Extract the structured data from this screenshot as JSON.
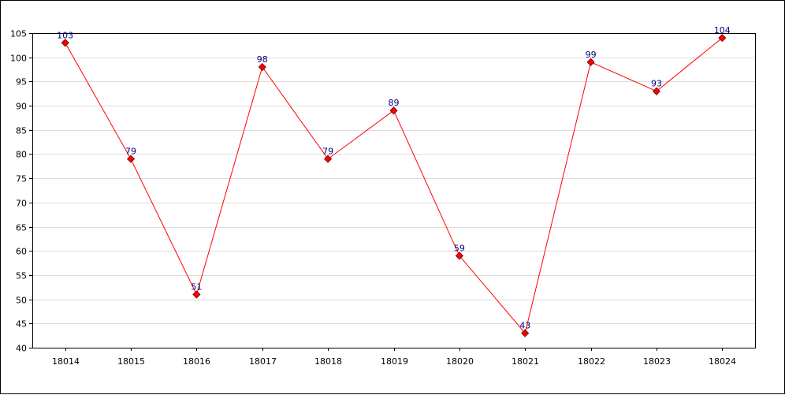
{
  "chart_data": {
    "type": "line",
    "title": "",
    "xlabel": "",
    "ylabel": "",
    "categories": [
      "18014",
      "18015",
      "18016",
      "18017",
      "18018",
      "18019",
      "18020",
      "18021",
      "18022",
      "18023",
      "18024"
    ],
    "series": [
      {
        "values": [
          103,
          79,
          51,
          98,
          79,
          89,
          59,
          43,
          99,
          93,
          104
        ],
        "color": "#ff0000",
        "marker_color": "#ff0000",
        "label_color": "#000080"
      }
    ],
    "ylim": [
      40,
      105
    ],
    "yticks": [
      40,
      45,
      50,
      55,
      60,
      65,
      70,
      75,
      80,
      85,
      90,
      95,
      100,
      105
    ],
    "grid": true,
    "grid_color": "#dddddd",
    "data_labels": true
  }
}
